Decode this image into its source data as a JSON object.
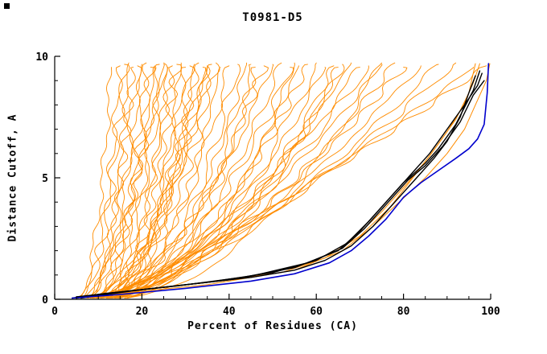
{
  "chart_data": {
    "type": "line",
    "title": "T0981-D5",
    "xlabel": "Percent of Residues (CA)",
    "ylabel": "Distance Cutoff, A",
    "xlim": [
      0,
      100
    ],
    "ylim": [
      0,
      10
    ],
    "x_major_ticks": [
      0,
      20,
      40,
      60,
      80,
      100
    ],
    "x_minor_step": 5,
    "y_major_ticks": [
      0,
      5,
      10
    ],
    "y_minor_step": 1,
    "grid": "off",
    "legend": "none",
    "colors": {
      "orange": "#ff8c00",
      "black": "#000000",
      "blue": "#0000cd",
      "axis": "#000000",
      "background": "#ffffff"
    },
    "series_note": "Orange: many model curves (percent of CA residues under distance cutoff). Black: near-native models. Blue: best model. Param curves encoded as [x_at_bottom, x_at_top, shape_exponent].",
    "orange_param_series": [
      [
        4,
        13,
        0.4
      ],
      [
        4.5,
        15,
        0.38
      ],
      [
        5,
        16,
        0.45
      ],
      [
        5.5,
        17,
        0.35
      ],
      [
        6,
        18,
        0.42
      ],
      [
        6.5,
        19,
        0.4
      ],
      [
        7,
        20,
        0.46
      ],
      [
        7.5,
        21,
        0.38
      ],
      [
        8,
        22,
        0.44
      ],
      [
        8.5,
        23,
        0.48
      ],
      [
        9,
        24,
        0.42
      ],
      [
        9.5,
        25,
        0.46
      ],
      [
        10,
        26,
        0.4
      ],
      [
        10.5,
        27,
        0.48
      ],
      [
        11,
        28,
        0.44
      ],
      [
        11.5,
        29,
        0.4
      ],
      [
        12,
        30,
        0.47
      ],
      [
        12.5,
        31,
        0.44
      ],
      [
        13,
        32,
        0.42
      ],
      [
        4,
        33,
        0.38
      ],
      [
        5,
        34,
        0.44
      ],
      [
        6,
        35,
        0.4
      ],
      [
        7,
        36,
        0.47
      ],
      [
        8,
        37,
        0.43
      ],
      [
        9,
        38,
        0.4
      ],
      [
        10,
        40,
        0.46
      ],
      [
        11,
        42,
        0.44
      ],
      [
        12,
        44,
        0.48
      ],
      [
        13,
        46,
        0.42
      ],
      [
        4.5,
        48,
        0.45
      ],
      [
        5.5,
        50,
        0.5
      ],
      [
        6.5,
        52,
        0.46
      ],
      [
        7.5,
        54,
        0.5
      ],
      [
        8.5,
        56,
        0.48
      ],
      [
        9.5,
        58,
        0.52
      ],
      [
        10.5,
        60,
        0.5
      ],
      [
        11.5,
        62,
        0.55
      ],
      [
        12.5,
        64,
        0.52
      ],
      [
        13.5,
        66,
        0.55
      ],
      [
        5,
        68,
        0.55
      ],
      [
        6,
        70,
        0.6
      ],
      [
        7,
        72,
        0.58
      ],
      [
        8,
        75,
        0.62
      ],
      [
        9,
        78,
        0.6
      ],
      [
        10,
        80,
        0.65
      ],
      [
        11,
        84,
        0.68
      ],
      [
        12,
        88,
        0.7
      ],
      [
        13,
        92,
        0.75
      ],
      [
        8,
        96,
        0.8
      ],
      [
        10,
        99,
        0.85
      ],
      [
        6,
        45,
        0.35
      ],
      [
        7,
        55,
        0.4
      ],
      [
        9,
        65,
        0.45
      ],
      [
        11,
        35,
        0.6
      ],
      [
        5,
        25,
        0.55
      ],
      [
        12,
        75,
        0.5
      ]
    ],
    "orange_point_series": [
      [
        [
          5,
          0.1
        ],
        [
          20,
          0.4
        ],
        [
          38,
          0.75
        ],
        [
          52,
          1.1
        ],
        [
          62,
          1.7
        ],
        [
          70,
          2.6
        ],
        [
          77,
          3.8
        ],
        [
          83,
          5.2
        ],
        [
          88,
          6.4
        ],
        [
          92,
          7.4
        ],
        [
          95,
          8.5
        ],
        [
          96.5,
          9.7
        ]
      ],
      [
        [
          6,
          0.1
        ],
        [
          28,
          0.55
        ],
        [
          48,
          1.0
        ],
        [
          60,
          1.6
        ],
        [
          68,
          2.4
        ],
        [
          75,
          3.6
        ],
        [
          81,
          4.8
        ],
        [
          86,
          5.9
        ],
        [
          90,
          6.9
        ],
        [
          93.5,
          7.9
        ],
        [
          96,
          8.9
        ],
        [
          97.5,
          9.7
        ]
      ],
      [
        [
          7,
          0.1
        ],
        [
          35,
          0.6
        ],
        [
          55,
          1.2
        ],
        [
          66,
          2.0
        ],
        [
          73,
          3.0
        ],
        [
          79,
          4.0
        ],
        [
          85,
          5.0
        ],
        [
          90,
          6.0
        ],
        [
          94,
          7.0
        ],
        [
          97,
          8.2
        ],
        [
          99,
          9.0
        ],
        [
          99.8,
          9.7
        ]
      ]
    ],
    "black_series": [
      [
        [
          5,
          0.05
        ],
        [
          15,
          0.3
        ],
        [
          30,
          0.6
        ],
        [
          45,
          0.9
        ],
        [
          55,
          1.2
        ],
        [
          62,
          1.6
        ],
        [
          68,
          2.2
        ],
        [
          73,
          3.0
        ],
        [
          78,
          4.0
        ],
        [
          83,
          5.0
        ],
        [
          87,
          5.8
        ],
        [
          90,
          6.5
        ],
        [
          93,
          7.5
        ],
        [
          95,
          8.5
        ],
        [
          96.5,
          9.2
        ]
      ],
      [
        [
          6,
          0.05
        ],
        [
          18,
          0.35
        ],
        [
          35,
          0.7
        ],
        [
          50,
          1.1
        ],
        [
          60,
          1.6
        ],
        [
          67,
          2.3
        ],
        [
          72,
          3.2
        ],
        [
          77,
          4.2
        ],
        [
          82,
          5.2
        ],
        [
          86,
          6.0
        ],
        [
          90,
          7.0
        ],
        [
          94,
          8.0
        ],
        [
          97,
          8.8
        ],
        [
          98,
          9.3
        ]
      ],
      [
        [
          5,
          0.1
        ],
        [
          20,
          0.4
        ],
        [
          40,
          0.8
        ],
        [
          55,
          1.3
        ],
        [
          65,
          2.0
        ],
        [
          70,
          2.8
        ],
        [
          75,
          3.8
        ],
        [
          80,
          4.8
        ],
        [
          85,
          5.6
        ],
        [
          88,
          6.2
        ],
        [
          92,
          7.2
        ],
        [
          96,
          8.6
        ],
        [
          97.5,
          9.4
        ]
      ],
      [
        [
          4,
          0.05
        ],
        [
          12,
          0.25
        ],
        [
          28,
          0.55
        ],
        [
          45,
          0.95
        ],
        [
          58,
          1.5
        ],
        [
          66,
          2.1
        ],
        [
          71,
          2.9
        ],
        [
          76,
          3.9
        ],
        [
          81,
          4.9
        ],
        [
          85,
          5.5
        ],
        [
          89,
          6.3
        ],
        [
          93,
          7.3
        ],
        [
          96,
          8.4
        ],
        [
          98.5,
          9.0
        ]
      ]
    ],
    "blue_series": [
      [
        [
          4,
          0.05
        ],
        [
          15,
          0.2
        ],
        [
          30,
          0.45
        ],
        [
          45,
          0.75
        ],
        [
          55,
          1.05
        ],
        [
          63,
          1.5
        ],
        [
          68,
          2.0
        ],
        [
          72,
          2.6
        ],
        [
          76,
          3.3
        ],
        [
          80,
          4.2
        ],
        [
          84,
          4.8
        ],
        [
          88,
          5.3
        ],
        [
          92,
          5.8
        ],
        [
          95,
          6.2
        ],
        [
          97,
          6.6
        ],
        [
          98.5,
          7.2
        ],
        [
          99.2,
          8.5
        ],
        [
          99.5,
          9.7
        ]
      ]
    ]
  }
}
